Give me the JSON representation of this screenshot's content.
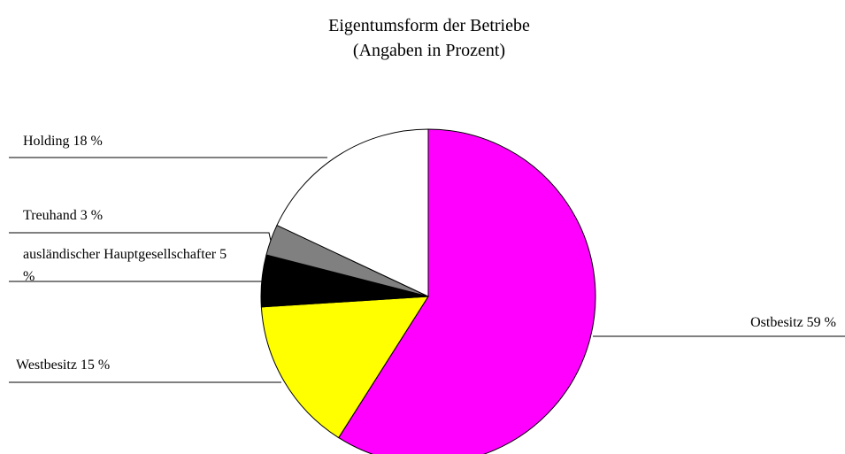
{
  "chart_data": {
    "type": "pie",
    "title": "Eigentumsform der Betriebe",
    "subtitle": "(Angaben in Prozent)",
    "categories": [
      "Ostbesitz",
      "Westbesitz",
      "ausländischer Hauptgesellschafter",
      "Treuhand",
      "Holding"
    ],
    "values": [
      59,
      15,
      5,
      3,
      18
    ],
    "value_labels": [
      "59 %",
      "15 %",
      "5 %",
      "3 %",
      "18 %"
    ],
    "colors": [
      "#ff00ff",
      "#ffff00",
      "#000000",
      "#808080",
      "#ffffff"
    ]
  }
}
